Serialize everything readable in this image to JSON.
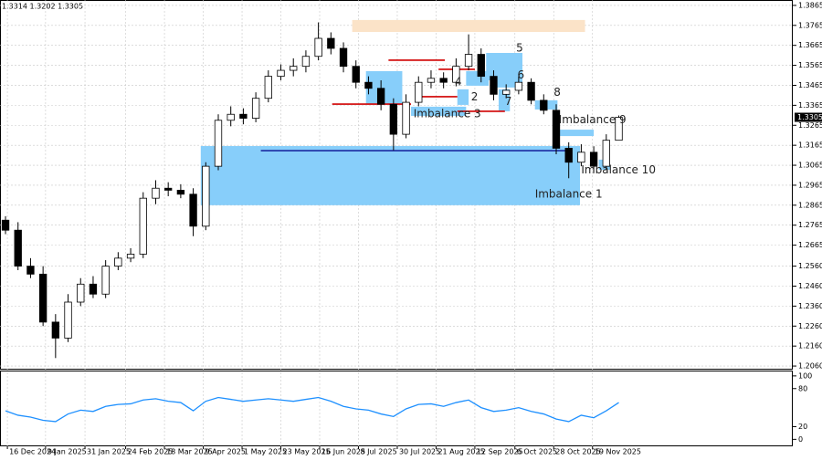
{
  "chart_data": {
    "type": "candlestick",
    "info": "1.3314 1.3202 1.3305",
    "open": [
      1.279,
      1.274,
      1.256,
      1.252,
      1.228,
      1.22,
      1.238,
      1.247,
      1.242,
      1.256,
      1.26,
      1.262,
      1.29,
      1.295,
      1.294,
      1.292,
      1.276,
      1.306,
      1.329,
      1.332,
      1.33,
      1.34,
      1.351,
      1.354,
      1.356,
      1.361,
      1.37,
      1.365,
      1.356,
      1.348,
      1.345,
      1.337,
      1.322,
      1.338,
      1.348,
      1.35,
      1.348,
      1.356,
      1.362,
      1.351,
      1.342,
      1.344,
      1.348,
      1.339,
      1.334,
      1.315,
      1.308,
      1.313,
      1.306,
      1.319
    ],
    "high": [
      1.281,
      1.278,
      1.26,
      1.256,
      1.232,
      1.242,
      1.25,
      1.251,
      1.259,
      1.263,
      1.265,
      1.293,
      1.299,
      1.298,
      1.297,
      1.295,
      1.308,
      1.332,
      1.336,
      1.335,
      1.343,
      1.354,
      1.357,
      1.36,
      1.364,
      1.378,
      1.373,
      1.368,
      1.359,
      1.351,
      1.349,
      1.34,
      1.342,
      1.351,
      1.354,
      1.353,
      1.36,
      1.372,
      1.365,
      1.354,
      1.347,
      1.351,
      1.35,
      1.342,
      1.337,
      1.318,
      1.317,
      1.316,
      1.322,
      1.3314
    ],
    "low": [
      1.272,
      1.254,
      1.25,
      1.226,
      1.21,
      1.218,
      1.236,
      1.24,
      1.24,
      1.254,
      1.258,
      1.26,
      1.287,
      1.291,
      1.29,
      1.271,
      1.274,
      1.304,
      1.326,
      1.327,
      1.328,
      1.338,
      1.349,
      1.351,
      1.353,
      1.359,
      1.362,
      1.353,
      1.345,
      1.342,
      1.334,
      1.314,
      1.32,
      1.336,
      1.345,
      1.345,
      1.346,
      1.354,
      1.348,
      1.339,
      1.34,
      1.342,
      1.337,
      1.332,
      1.312,
      1.3,
      1.306,
      1.303,
      1.304,
      1.3202
    ],
    "close": [
      1.274,
      1.256,
      1.252,
      1.228,
      1.22,
      1.238,
      1.247,
      1.242,
      1.256,
      1.26,
      1.262,
      1.29,
      1.295,
      1.294,
      1.292,
      1.276,
      1.306,
      1.329,
      1.332,
      1.33,
      1.34,
      1.351,
      1.354,
      1.356,
      1.361,
      1.37,
      1.365,
      1.356,
      1.348,
      1.345,
      1.337,
      1.322,
      1.338,
      1.348,
      1.35,
      1.348,
      1.356,
      1.362,
      1.351,
      1.342,
      1.344,
      1.348,
      1.339,
      1.334,
      1.315,
      1.308,
      1.313,
      1.306,
      1.319,
      1.3305
    ],
    "xlim": [
      -0.44,
      62.9
    ],
    "xticks": [
      {
        "value": 0.15,
        "label": "16 Dec 2024"
      },
      {
        "value": 3.2,
        "label": "9 Jan 2025"
      },
      {
        "value": 6.35,
        "label": "31 Jan 2025"
      },
      {
        "value": 9.6,
        "label": "24 Feb 2025"
      },
      {
        "value": 12.7,
        "label": "18 Mar 2025"
      },
      {
        "value": 15.8,
        "label": "9 Apr 2025"
      },
      {
        "value": 18.9,
        "label": "1 May 2025"
      },
      {
        "value": 22.0,
        "label": "23 May 2025"
      },
      {
        "value": 25.1,
        "label": "16 Jun 2025"
      },
      {
        "value": 28.2,
        "label": "8 Jul 2025"
      },
      {
        "value": 31.3,
        "label": "30 Jul 2025"
      },
      {
        "value": 34.4,
        "label": "21 Aug 2025"
      },
      {
        "value": 37.5,
        "label": "12 Sep 2025"
      },
      {
        "value": 40.7,
        "label": "6 Oct 2025"
      },
      {
        "value": 43.8,
        "label": "28 Oct 2025"
      },
      {
        "value": 46.9,
        "label": "19 Nov 2025"
      }
    ],
    "ylim": [
      1.2042,
      1.3892
    ],
    "yticks": [
      1.3865,
      1.3765,
      1.3665,
      1.3565,
      1.3465,
      1.3365,
      1.3265,
      1.3165,
      1.3065,
      1.2965,
      1.2865,
      1.2765,
      1.2665,
      {
        "value": 1.256,
        "label": "1.2560"
      },
      {
        "value": 1.246,
        "label": "1.2460"
      },
      {
        "value": 1.236,
        "label": "1.2360"
      },
      {
        "value": 1.226,
        "label": "1.2260"
      },
      {
        "value": 1.216,
        "label": "1.2160"
      },
      {
        "value": 1.206,
        "label": "1.2060"
      }
    ],
    "grid": true,
    "current_price": 1.3305,
    "zones": [
      {
        "x": [
          15.6,
          45.9
        ],
        "y": [
          1.2865,
          1.3161
        ],
        "color": "#87cefa"
      },
      {
        "x": [
          27.7,
          46.3
        ],
        "y": [
          1.3732,
          1.3792
        ],
        "color": "#fbe3c8"
      },
      {
        "x": [
          32.4,
          36.8
        ],
        "y": [
          1.3312,
          1.3358
        ],
        "color": "#87cefa"
      },
      {
        "x": [
          28.8,
          31.7
        ],
        "y": [
          1.337,
          1.3536
        ],
        "color": "#87cefa"
      },
      {
        "x": [
          36.1,
          37.0
        ],
        "y": [
          1.3367,
          1.3445
        ],
        "color": "#87cefa"
      },
      {
        "x": [
          36.8,
          38.6
        ],
        "y": [
          1.3463,
          1.3536
        ],
        "color": "#87cefa"
      },
      {
        "x": [
          38.4,
          41.3
        ],
        "y": [
          1.349,
          1.3627
        ],
        "color": "#87cefa"
      },
      {
        "x": [
          39.0,
          41.3
        ],
        "y": [
          1.3454,
          1.3499
        ],
        "color": "#87cefa"
      },
      {
        "x": [
          39.4,
          40.3
        ],
        "y": [
          1.3335,
          1.3445
        ],
        "color": "#87cefa"
      },
      {
        "x": [
          42.3,
          44.1
        ],
        "y": [
          1.3344,
          1.339
        ],
        "color": "#87cefa"
      },
      {
        "x": [
          44.1,
          47.0
        ],
        "y": [
          1.3211,
          1.3243
        ],
        "color": "#87cefa"
      },
      {
        "x": [
          47.4,
          48.3
        ],
        "y": [
          1.3042,
          1.3093
        ],
        "color": "#87cefa"
      }
    ],
    "levels": [
      {
        "y": 1.3138,
        "x": [
          20.4,
          44.8
        ],
        "color": "#1a2aa0"
      },
      {
        "y": 1.3591,
        "x": [
          30.6,
          35.1
        ],
        "color": "#d00000"
      },
      {
        "y": 1.3371,
        "x": [
          26.1,
          32.4
        ],
        "color": "#d00000"
      },
      {
        "y": 1.3335,
        "x": [
          36.1,
          39.9
        ],
        "color": "#d00000"
      },
      {
        "y": 1.3545,
        "x": [
          34.6,
          37.5
        ],
        "color": "#d00000"
      },
      {
        "y": 1.3408,
        "x": [
          32.8,
          36.1
        ],
        "color": "#d00000"
      }
    ],
    "annotations": [
      {
        "text": "Imbalance 1",
        "x": 42.3,
        "y": 1.292
      },
      {
        "text": "Imbalance 3",
        "x": 32.6,
        "y": 1.332
      },
      {
        "text": "Imbalance 9",
        "x": 44.2,
        "y": 1.3292
      },
      {
        "text": "Imbalance 10",
        "x": 46.0,
        "y": 1.304
      },
      {
        "text": "2",
        "x": 37.2,
        "y": 1.3405
      },
      {
        "text": "4",
        "x": 35.9,
        "y": 1.348
      },
      {
        "text": "5",
        "x": 40.8,
        "y": 1.365
      },
      {
        "text": "6",
        "x": 40.9,
        "y": 1.3515
      },
      {
        "text": "7",
        "x": 39.9,
        "y": 1.3382
      },
      {
        "text": "8",
        "x": 43.8,
        "y": 1.3428
      }
    ],
    "oscillator": {
      "type": "line",
      "color": "#1e90ff",
      "ylim": [
        -11,
        107
      ],
      "yticks": [
        100,
        80,
        20,
        0
      ],
      "values": [
        45,
        38,
        35,
        30,
        28,
        40,
        46,
        44,
        52,
        55,
        56,
        62,
        64,
        60,
        58,
        45,
        60,
        66,
        63,
        60,
        62,
        64,
        62,
        60,
        63,
        66,
        60,
        52,
        48,
        46,
        40,
        36,
        48,
        55,
        56,
        52,
        58,
        62,
        50,
        44,
        46,
        50,
        44,
        40,
        32,
        28,
        38,
        34,
        45,
        58
      ]
    }
  }
}
